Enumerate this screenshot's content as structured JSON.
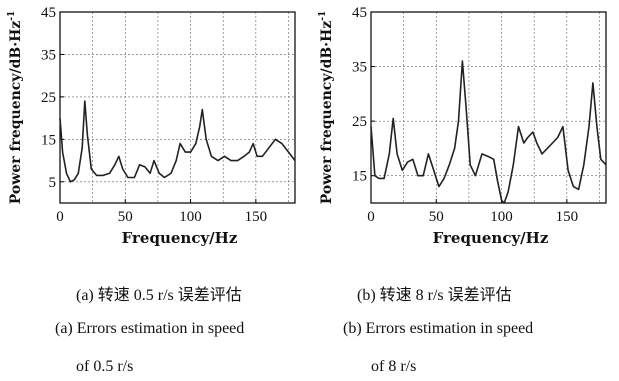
{
  "chart_data": [
    {
      "type": "line",
      "xlabel": "Frequency/Hz",
      "ylabel": "Power frequency/dB·Hz",
      "ylabel_sup": "-1",
      "xlim": [
        0,
        180
      ],
      "ylim": [
        0,
        45
      ],
      "xticks": [
        0,
        50,
        100,
        150
      ],
      "yticks": [
        5,
        15,
        25,
        35,
        45
      ],
      "grid": true,
      "series": [
        {
          "x": [
            0,
            2,
            5,
            8,
            11,
            14,
            17,
            19,
            21,
            24,
            28,
            33,
            38,
            42,
            45,
            48,
            52,
            57,
            61,
            65,
            69,
            72,
            76,
            80,
            85,
            89,
            92,
            96,
            100,
            104,
            107,
            109,
            112,
            116,
            121,
            126,
            131,
            136,
            141,
            145,
            148,
            151,
            155,
            160,
            165,
            170,
            175,
            180
          ],
          "y": [
            20,
            12,
            7,
            5,
            5.5,
            7,
            13,
            24,
            16,
            8,
            6.5,
            6.5,
            7,
            9,
            11,
            8,
            6,
            6,
            9,
            8.5,
            7,
            10,
            7,
            6,
            7,
            10,
            14,
            12,
            12,
            14,
            18,
            22,
            15,
            11,
            10,
            11,
            10,
            10,
            11,
            12,
            14,
            11,
            11,
            13,
            15,
            14,
            12,
            10
          ]
        }
      ]
    },
    {
      "type": "line",
      "xlabel": "Frequency/Hz",
      "ylabel": "Power frequency/dB·Hz",
      "ylabel_sup": "-1",
      "xlim": [
        0,
        180
      ],
      "ylim": [
        10,
        45
      ],
      "xticks": [
        0,
        50,
        100,
        150
      ],
      "yticks": [
        15,
        25,
        35,
        45
      ],
      "grid": true,
      "series": [
        {
          "x": [
            0,
            3,
            6,
            10,
            14,
            17,
            20,
            24,
            28,
            32,
            36,
            40,
            44,
            48,
            52,
            56,
            60,
            64,
            67,
            70,
            73,
            76,
            80,
            85,
            90,
            94,
            97,
            100,
            102,
            105,
            109,
            113,
            117,
            120,
            124,
            127,
            131,
            135,
            139,
            143,
            147,
            151,
            155,
            159,
            163,
            167,
            170,
            173,
            176,
            180
          ],
          "y": [
            24,
            15,
            14.5,
            14.5,
            19,
            25.5,
            19,
            16,
            17.5,
            18,
            15,
            15,
            19,
            16,
            13,
            14.5,
            17,
            20,
            25,
            36,
            27,
            17,
            15,
            19,
            18.5,
            18,
            14,
            10.5,
            10,
            12,
            17,
            24,
            21,
            22,
            23,
            21,
            19,
            20,
            21,
            22,
            24,
            16,
            13,
            12.5,
            17,
            24,
            32,
            24,
            18,
            17
          ]
        }
      ]
    }
  ],
  "captions": {
    "a_cn": "(a) 转速 0.5 r/s 误差评估",
    "b_cn": "(b) 转速 8 r/s 误差评估",
    "a_en_line1": "(a) Errors estimation in speed",
    "a_en_line2": "of 0.5 r/s",
    "b_en_line1": "(b) Errors estimation in speed",
    "b_en_line2": "of 8 r/s"
  }
}
